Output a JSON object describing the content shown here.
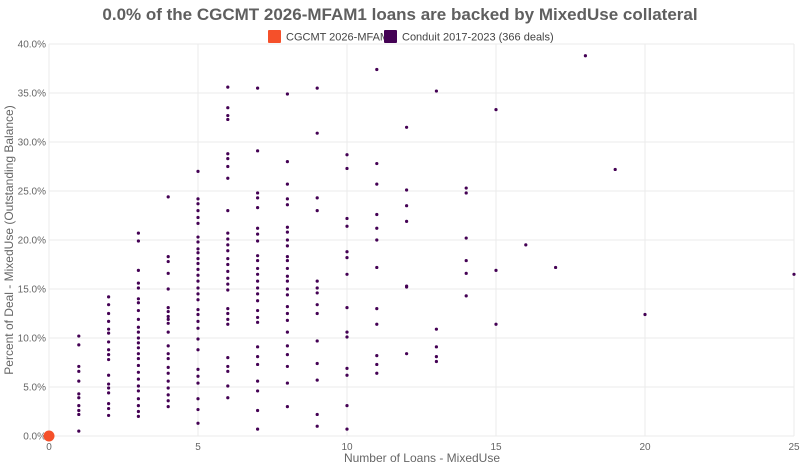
{
  "chart_data": {
    "type": "scatter",
    "title": "0.0% of the CGCMT 2026-MFAM1 loans are backed by MixedUse collateral",
    "xlabel": "Number of Loans - MixedUse",
    "ylabel": "Percent of Deal - MixedUse (Outstanding Balance)",
    "xlim": [
      0,
      25
    ],
    "ylim": [
      0,
      40
    ],
    "x_ticks": [
      0,
      5,
      10,
      15,
      20,
      25
    ],
    "x_tick_labels": [
      "0",
      "5",
      "10",
      "15",
      "20",
      "25"
    ],
    "y_ticks": [
      0,
      5,
      10,
      15,
      20,
      25,
      30,
      35,
      40
    ],
    "y_tick_labels": [
      "0.0%",
      "5.0%",
      "10.0%",
      "15.0%",
      "20.0%",
      "25.0%",
      "30.0%",
      "35.0%",
      "40.0%"
    ],
    "grid": true,
    "legend_position": "top-center",
    "series": [
      {
        "name": "CGCMT 2026-MFAM1",
        "color": "#f5502a",
        "marker": "large-circle",
        "points": [
          [
            0,
            0
          ]
        ]
      },
      {
        "name": "Conduit 2017-2023 (366 deals)",
        "color": "#440154",
        "marker": "small-dot",
        "points": [
          [
            1,
            10.2
          ],
          [
            1,
            9.3
          ],
          [
            1,
            7.1
          ],
          [
            1,
            6.6
          ],
          [
            1,
            5.6
          ],
          [
            1,
            4.3
          ],
          [
            1,
            3.9
          ],
          [
            1,
            3.1
          ],
          [
            1,
            2.6
          ],
          [
            1,
            2.2
          ],
          [
            1,
            0.5
          ],
          [
            2,
            14.2
          ],
          [
            2,
            13.4
          ],
          [
            2,
            12.5
          ],
          [
            2,
            11.7
          ],
          [
            2,
            10.9
          ],
          [
            2,
            10.5
          ],
          [
            2,
            9.6
          ],
          [
            2,
            8.8
          ],
          [
            2,
            8.3
          ],
          [
            2,
            7.8
          ],
          [
            2,
            6.2
          ],
          [
            2,
            5.3
          ],
          [
            2,
            4.9
          ],
          [
            2,
            4.4
          ],
          [
            2,
            3.3
          ],
          [
            2,
            2.8
          ],
          [
            2,
            2.1
          ],
          [
            3,
            20.7
          ],
          [
            3,
            19.9
          ],
          [
            3,
            16.9
          ],
          [
            3,
            15.6
          ],
          [
            3,
            15.1
          ],
          [
            3,
            14.0
          ],
          [
            3,
            13.6
          ],
          [
            3,
            12.8
          ],
          [
            3,
            11.9
          ],
          [
            3,
            11.1
          ],
          [
            3,
            10.6
          ],
          [
            3,
            10.0
          ],
          [
            3,
            9.5
          ],
          [
            3,
            9.0
          ],
          [
            3,
            8.4
          ],
          [
            3,
            7.9
          ],
          [
            3,
            7.2
          ],
          [
            3,
            6.5
          ],
          [
            3,
            5.8
          ],
          [
            3,
            5.1
          ],
          [
            3,
            4.6
          ],
          [
            3,
            3.8
          ],
          [
            3,
            3.1
          ],
          [
            3,
            2.5
          ],
          [
            3,
            2.0
          ],
          [
            4,
            24.4
          ],
          [
            4,
            18.3
          ],
          [
            4,
            17.8
          ],
          [
            4,
            16.6
          ],
          [
            4,
            15.0
          ],
          [
            4,
            13.1
          ],
          [
            4,
            12.7
          ],
          [
            4,
            12.2
          ],
          [
            4,
            11.9
          ],
          [
            4,
            11.5
          ],
          [
            4,
            10.6
          ],
          [
            4,
            9.2
          ],
          [
            4,
            8.4
          ],
          [
            4,
            7.9
          ],
          [
            4,
            7.0
          ],
          [
            4,
            6.4
          ],
          [
            4,
            5.6
          ],
          [
            4,
            4.9
          ],
          [
            4,
            4.2
          ],
          [
            4,
            3.6
          ],
          [
            4,
            3.0
          ],
          [
            5,
            27.0
          ],
          [
            5,
            24.2
          ],
          [
            5,
            23.7
          ],
          [
            5,
            23.0
          ],
          [
            5,
            22.3
          ],
          [
            5,
            21.7
          ],
          [
            5,
            20.3
          ],
          [
            5,
            19.8
          ],
          [
            5,
            19.1
          ],
          [
            5,
            18.7
          ],
          [
            5,
            18.1
          ],
          [
            5,
            17.6
          ],
          [
            5,
            17.0
          ],
          [
            5,
            16.4
          ],
          [
            5,
            15.8
          ],
          [
            5,
            15.1
          ],
          [
            5,
            14.5
          ],
          [
            5,
            13.9
          ],
          [
            5,
            12.9
          ],
          [
            5,
            12.4
          ],
          [
            5,
            11.7
          ],
          [
            5,
            11.0
          ],
          [
            5,
            9.9
          ],
          [
            5,
            8.8
          ],
          [
            5,
            6.8
          ],
          [
            5,
            6.1
          ],
          [
            5,
            5.4
          ],
          [
            5,
            3.8
          ],
          [
            5,
            2.7
          ],
          [
            5,
            1.3
          ],
          [
            6,
            35.6
          ],
          [
            6,
            33.5
          ],
          [
            6,
            32.7
          ],
          [
            6,
            32.3
          ],
          [
            6,
            28.8
          ],
          [
            6,
            28.3
          ],
          [
            6,
            27.5
          ],
          [
            6,
            26.3
          ],
          [
            6,
            23.0
          ],
          [
            6,
            20.7
          ],
          [
            6,
            20.1
          ],
          [
            6,
            19.5
          ],
          [
            6,
            18.9
          ],
          [
            6,
            18.1
          ],
          [
            6,
            17.5
          ],
          [
            6,
            16.8
          ],
          [
            6,
            16.1
          ],
          [
            6,
            15.5
          ],
          [
            6,
            14.9
          ],
          [
            6,
            13.0
          ],
          [
            6,
            12.5
          ],
          [
            6,
            11.9
          ],
          [
            6,
            11.4
          ],
          [
            6,
            8.0
          ],
          [
            6,
            7.1
          ],
          [
            6,
            6.6
          ],
          [
            6,
            5.1
          ],
          [
            6,
            3.9
          ],
          [
            7,
            35.5
          ],
          [
            7,
            29.1
          ],
          [
            7,
            24.8
          ],
          [
            7,
            24.3
          ],
          [
            7,
            23.3
          ],
          [
            7,
            21.2
          ],
          [
            7,
            20.6
          ],
          [
            7,
            19.9
          ],
          [
            7,
            18.4
          ],
          [
            7,
            17.9
          ],
          [
            7,
            17.1
          ],
          [
            7,
            16.5
          ],
          [
            7,
            15.8
          ],
          [
            7,
            15.1
          ],
          [
            7,
            14.5
          ],
          [
            7,
            13.8
          ],
          [
            7,
            12.8
          ],
          [
            7,
            12.1
          ],
          [
            7,
            11.6
          ],
          [
            7,
            9.1
          ],
          [
            7,
            8.1
          ],
          [
            7,
            7.3
          ],
          [
            7,
            5.6
          ],
          [
            7,
            4.6
          ],
          [
            7,
            2.6
          ],
          [
            7,
            0.7
          ],
          [
            8,
            34.9
          ],
          [
            8,
            28.0
          ],
          [
            8,
            25.7
          ],
          [
            8,
            24.2
          ],
          [
            8,
            23.6
          ],
          [
            8,
            21.3
          ],
          [
            8,
            20.8
          ],
          [
            8,
            20.0
          ],
          [
            8,
            19.4
          ],
          [
            8,
            18.3
          ],
          [
            8,
            17.9
          ],
          [
            8,
            17.1
          ],
          [
            8,
            16.3
          ],
          [
            8,
            15.8
          ],
          [
            8,
            15.0
          ],
          [
            8,
            14.4
          ],
          [
            8,
            13.2
          ],
          [
            8,
            12.5
          ],
          [
            8,
            11.8
          ],
          [
            8,
            10.6
          ],
          [
            8,
            9.2
          ],
          [
            8,
            8.3
          ],
          [
            8,
            7.1
          ],
          [
            8,
            5.4
          ],
          [
            8,
            3.0
          ],
          [
            9,
            35.5
          ],
          [
            9,
            30.9
          ],
          [
            9,
            24.3
          ],
          [
            9,
            23.0
          ],
          [
            9,
            15.8
          ],
          [
            9,
            15.1
          ],
          [
            9,
            14.6
          ],
          [
            9,
            13.4
          ],
          [
            9,
            12.5
          ],
          [
            9,
            9.7
          ],
          [
            9,
            7.4
          ],
          [
            9,
            5.7
          ],
          [
            9,
            2.2
          ],
          [
            9,
            1.0
          ],
          [
            10,
            28.7
          ],
          [
            10,
            27.3
          ],
          [
            10,
            22.2
          ],
          [
            10,
            21.4
          ],
          [
            10,
            18.8
          ],
          [
            10,
            18.2
          ],
          [
            10,
            16.5
          ],
          [
            10,
            13.1
          ],
          [
            10,
            10.6
          ],
          [
            10,
            10.1
          ],
          [
            10,
            6.9
          ],
          [
            10,
            6.2
          ],
          [
            10,
            3.1
          ],
          [
            10,
            0.7
          ],
          [
            11,
            37.4
          ],
          [
            11,
            27.8
          ],
          [
            11,
            25.7
          ],
          [
            11,
            22.6
          ],
          [
            11,
            21.2
          ],
          [
            11,
            20.0
          ],
          [
            11,
            17.2
          ],
          [
            11,
            13.0
          ],
          [
            11,
            11.4
          ],
          [
            11,
            8.2
          ],
          [
            11,
            7.3
          ],
          [
            11,
            6.4
          ],
          [
            12,
            31.5
          ],
          [
            12,
            25.1
          ],
          [
            12,
            23.5
          ],
          [
            12,
            21.9
          ],
          [
            12,
            15.3
          ],
          [
            12,
            15.2
          ],
          [
            12,
            8.4
          ],
          [
            13,
            35.2
          ],
          [
            13,
            10.9
          ],
          [
            13,
            9.1
          ],
          [
            13,
            8.1
          ],
          [
            13,
            7.6
          ],
          [
            14,
            25.3
          ],
          [
            14,
            24.8
          ],
          [
            14,
            20.2
          ],
          [
            14,
            17.9
          ],
          [
            14,
            16.6
          ],
          [
            14,
            14.3
          ],
          [
            15,
            33.3
          ],
          [
            15,
            16.9
          ],
          [
            15,
            11.4
          ],
          [
            16,
            19.5
          ],
          [
            17,
            17.2
          ],
          [
            18,
            38.8
          ],
          [
            19,
            27.2
          ],
          [
            20,
            12.4
          ],
          [
            25,
            16.5
          ]
        ]
      }
    ]
  }
}
